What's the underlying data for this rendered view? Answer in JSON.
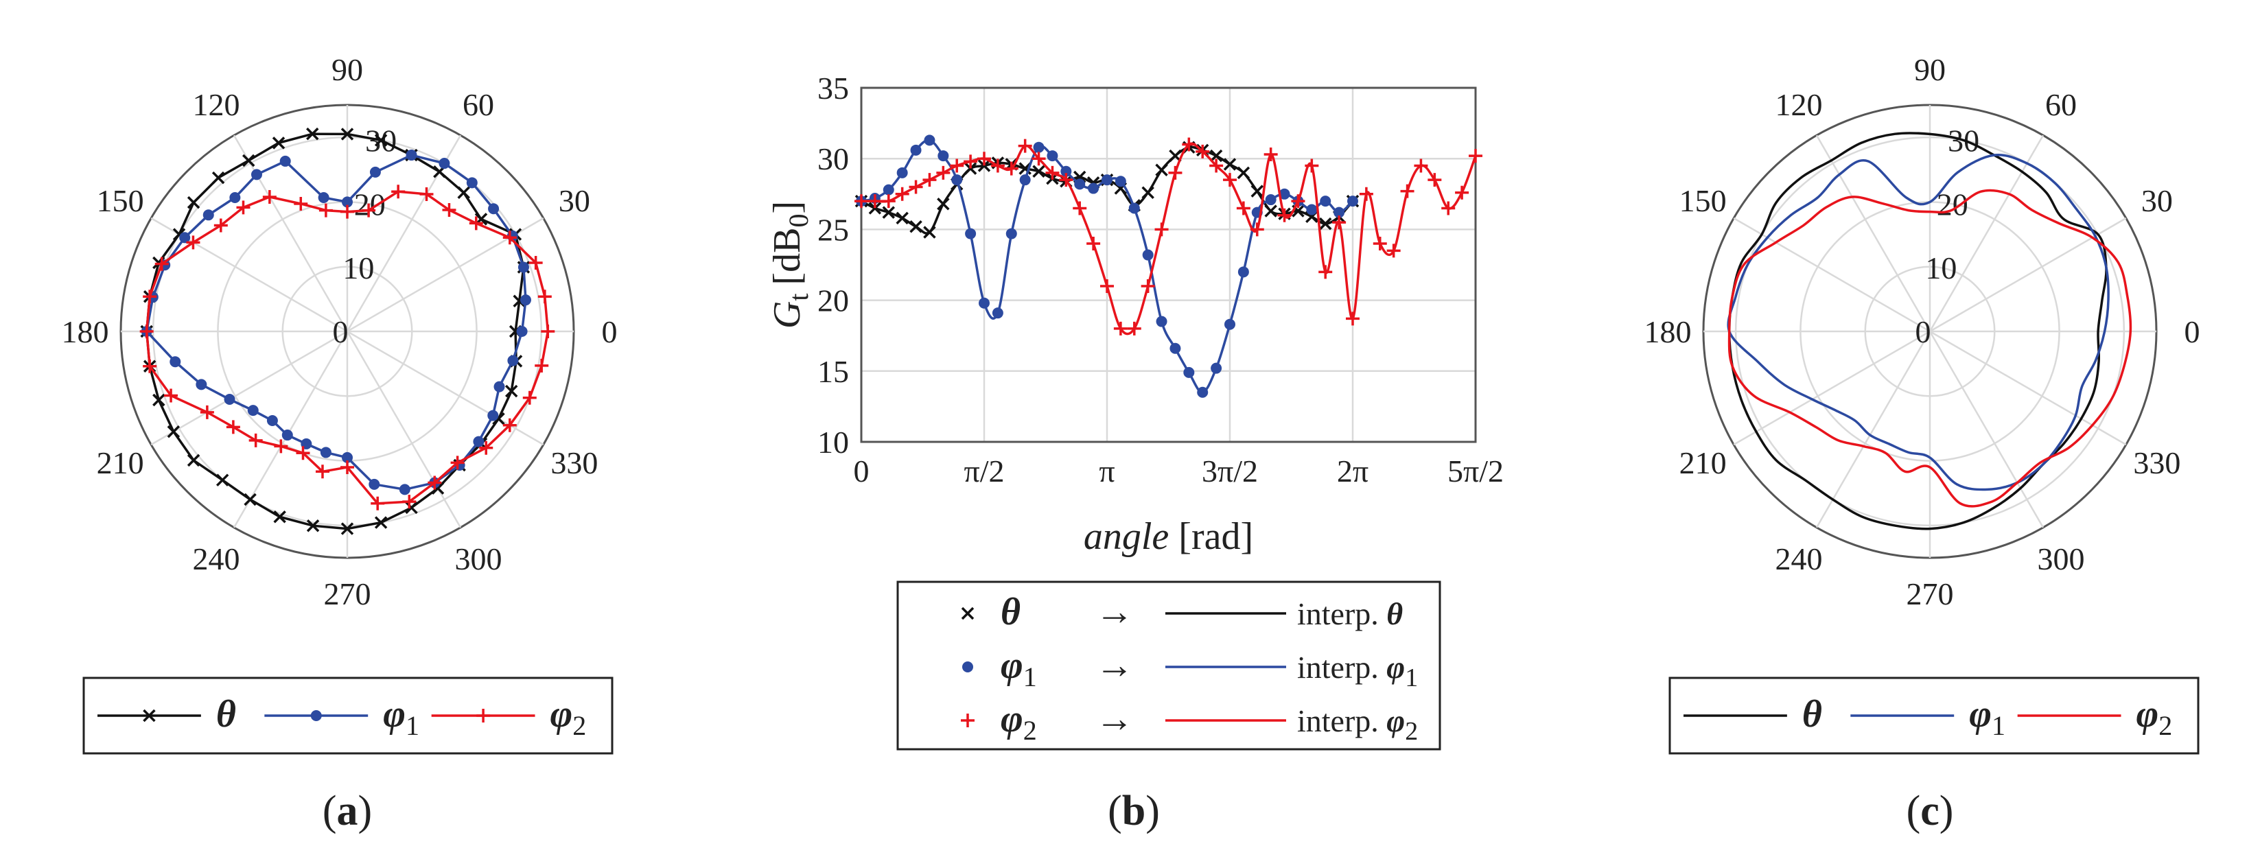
{
  "figure": {
    "panels": [
      "a",
      "b",
      "c"
    ],
    "subfigure_labels": [
      {
        "open": "(",
        "letter": "a",
        "close": ")"
      },
      {
        "open": "(",
        "letter": "b",
        "close": ")"
      },
      {
        "open": "(",
        "letter": "c",
        "close": ")"
      }
    ]
  },
  "colors": {
    "theta": "#111111",
    "phi1": "#2c4aa0",
    "phi2": "#e8141c",
    "grid": "#d9d9d9",
    "axis": "#555555"
  },
  "chart_data": [
    {
      "id": "a",
      "type": "polar",
      "subtitle": "(a)",
      "angle_unit": "deg",
      "angle_ticks": [
        "0",
        "30",
        "60",
        "90",
        "120",
        "150",
        "180",
        "210",
        "240",
        "270",
        "300",
        "330"
      ],
      "r_ticks": [
        "0",
        "10",
        "20",
        "30"
      ],
      "rlim": [
        0,
        35
      ],
      "legend": {
        "position": "bottom",
        "entries": [
          {
            "sym": "θ",
            "sub": ""
          },
          {
            "sym": "φ",
            "sub": "1"
          },
          {
            "sym": "φ",
            "sub": "2"
          }
        ]
      },
      "series": [
        {
          "name": "θ",
          "color_key": "theta",
          "marker": "x",
          "angles": [
            0,
            10,
            20,
            30,
            40,
            50,
            60,
            70,
            80,
            90,
            100,
            110,
            120,
            130,
            140,
            150,
            160,
            170,
            180,
            190,
            200,
            210,
            220,
            230,
            240,
            250,
            260,
            270,
            280,
            290,
            300,
            310,
            320,
            330,
            340,
            350
          ],
          "r": [
            26,
            27,
            29,
            30,
            27,
            28,
            28.5,
            29,
            30,
            30.5,
            31,
            31,
            30.5,
            31,
            31,
            30,
            31,
            31,
            31,
            31,
            31,
            31,
            31,
            30,
            30,
            30.5,
            30.5,
            30.5,
            30,
            29,
            28,
            27,
            27,
            27,
            27,
            26.5
          ]
        },
        {
          "name": "φ1",
          "color_key": "phi1",
          "marker": "o",
          "angles": [
            0,
            10,
            20,
            30,
            40,
            50,
            60,
            70,
            80,
            90,
            100,
            110,
            120,
            130,
            140,
            150,
            160,
            170,
            180,
            190,
            200,
            210,
            220,
            230,
            240,
            250,
            260,
            270,
            280,
            290,
            300,
            310,
            320,
            330,
            340,
            350
          ],
          "r": [
            27,
            28,
            29,
            29.5,
            29.5,
            30,
            30,
            29,
            25,
            20,
            21,
            28,
            28,
            27,
            28,
            29,
            30,
            30.5,
            31,
            27,
            24,
            21,
            19,
            18,
            18.5,
            18.5,
            19,
            19.5,
            24,
            26,
            27,
            27,
            26.5,
            26,
            25,
            26
          ]
        },
        {
          "name": "φ2",
          "color_key": "phi2",
          "marker": "+",
          "angles": [
            0,
            10,
            20,
            30,
            40,
            50,
            60,
            70,
            80,
            90,
            100,
            110,
            120,
            130,
            140,
            150,
            160,
            170,
            180,
            190,
            200,
            210,
            220,
            230,
            240,
            250,
            260,
            270,
            280,
            290,
            300,
            310,
            320,
            330,
            340,
            350
          ],
          "r": [
            31,
            31,
            31,
            29,
            26,
            24.5,
            24.5,
            23,
            19,
            18.5,
            19,
            21,
            24,
            25,
            25.5,
            27.5,
            30.5,
            31,
            31,
            31,
            29,
            25,
            23,
            22,
            20.5,
            20,
            22,
            21,
            27,
            28,
            27,
            26.5,
            28,
            29,
            30,
            30.5
          ]
        }
      ]
    },
    {
      "id": "b",
      "type": "line",
      "subtitle": "(b)",
      "ylabel": {
        "base": "G",
        "base_sub": "t",
        "unit": "[dB",
        "unit_sub": "0",
        "unit_close": "]"
      },
      "xlabel": {
        "italic": "angle",
        "rest": " [rad]"
      },
      "xlim": [
        0,
        7.854
      ],
      "ylim": [
        10,
        35
      ],
      "x_ticks": [
        0,
        1.5708,
        3.1416,
        4.7124,
        6.2832,
        7.854
      ],
      "x_tick_labels": [
        "0",
        "π/2",
        "π",
        "3π/2",
        "2π",
        "5π/2"
      ],
      "y_ticks": [
        10,
        15,
        20,
        25,
        30,
        35
      ],
      "y_tick_labels": [
        "10",
        "15",
        "20",
        "25",
        "30",
        "35"
      ],
      "grid": true,
      "legend": {
        "position": "bottom",
        "rows": [
          {
            "sym": "θ",
            "sub": "",
            "arrow": "→",
            "label": "interp. ",
            "lsym": "θ",
            "lsub": ""
          },
          {
            "sym": "φ",
            "sub": "1",
            "arrow": "→",
            "label": "interp. ",
            "lsym": "φ",
            "lsub": "1"
          },
          {
            "sym": "φ",
            "sub": "2",
            "arrow": "→",
            "label": "interp. ",
            "lsym": "φ",
            "lsub": "2"
          }
        ]
      },
      "series": [
        {
          "name": "θ",
          "color_key": "theta",
          "marker": "x",
          "x": [
            0,
            0.1745,
            0.3491,
            0.5236,
            0.6981,
            0.8727,
            1.0472,
            1.2217,
            1.3963,
            1.5708,
            1.7453,
            1.9199,
            2.0944,
            2.2689,
            2.4435,
            2.618,
            2.7925,
            2.9671,
            3.1416,
            3.3161,
            3.4907,
            3.6652,
            3.8397,
            4.0143,
            4.1888,
            4.3633,
            4.5379,
            4.7124,
            4.8869,
            5.0615,
            5.236,
            5.4105,
            5.5851,
            5.7596,
            5.9341,
            6.1087,
            6.2832
          ],
          "y": [
            27,
            26.5,
            26.2,
            25.8,
            25.2,
            24.8,
            26.8,
            28.2,
            29.3,
            29.5,
            29.7,
            29.6,
            29.3,
            29.1,
            28.6,
            28.4,
            28.7,
            28.3,
            28.5,
            27.9,
            26.7,
            27.6,
            29.2,
            30.2,
            30.8,
            30.6,
            30.2,
            29.6,
            29,
            27.7,
            26.3,
            26.1,
            26.3,
            25.9,
            25.4,
            25.9,
            27
          ]
        },
        {
          "name": "φ1",
          "color_key": "phi1",
          "marker": "o",
          "x": [
            0,
            0.1745,
            0.3491,
            0.5236,
            0.6981,
            0.8727,
            1.0472,
            1.2217,
            1.3963,
            1.5708,
            1.7453,
            1.9199,
            2.0944,
            2.2689,
            2.4435,
            2.618,
            2.7925,
            2.9671,
            3.1416,
            3.3161,
            3.4907,
            3.6652,
            3.8397,
            4.0143,
            4.1888,
            4.3633,
            4.5379,
            4.7124,
            4.8869,
            5.0615,
            5.236,
            5.4105,
            5.5851,
            5.7596,
            5.9341,
            6.1087,
            6.2832
          ],
          "y": [
            27,
            27.2,
            27.8,
            29,
            30.6,
            31.3,
            30.2,
            28.5,
            24.7,
            19.8,
            19.1,
            24.7,
            28.5,
            30.8,
            30.2,
            29.1,
            28.2,
            27.9,
            28.5,
            28.4,
            26.5,
            23.2,
            18.5,
            16.6,
            14.9,
            13.5,
            15.2,
            18.3,
            22,
            26.2,
            27.1,
            27.5,
            27,
            26.4,
            27,
            26.2,
            27
          ]
        },
        {
          "name": "φ2",
          "color_key": "phi2",
          "marker": "+",
          "x": [
            0,
            0.1745,
            0.3491,
            0.5236,
            0.6981,
            0.8727,
            1.0472,
            1.2217,
            1.3963,
            1.5708,
            1.7453,
            1.9199,
            2.0944,
            2.2689,
            2.4435,
            2.618,
            2.7925,
            2.9671,
            3.1416,
            3.3161,
            3.4907,
            3.6652,
            3.8397,
            4.0143,
            4.1888,
            4.3633,
            4.5379,
            4.7124,
            4.8869,
            5.0615,
            5.236,
            5.4105,
            5.5851,
            5.7596,
            5.9341,
            6.1087,
            6.2832,
            6.4577,
            6.6323,
            6.8068,
            6.9813,
            7.1558,
            7.3304,
            7.5049,
            7.6794,
            7.854
          ],
          "y": [
            27,
            27,
            27,
            27.5,
            28,
            28.5,
            29,
            29.5,
            29.8,
            30,
            29.5,
            29.3,
            30.9,
            30,
            29,
            28.5,
            26.5,
            24,
            21,
            18,
            18,
            21,
            25,
            29,
            31,
            30.5,
            29.5,
            28.5,
            26.5,
            25,
            30.3,
            26,
            27,
            29.5,
            22,
            25.5,
            18.7,
            27.5,
            24,
            23.5,
            27.7,
            29.5,
            28.5,
            26.5,
            27.6,
            30.2
          ]
        }
      ]
    },
    {
      "id": "c",
      "type": "polar",
      "subtitle": "(c)",
      "angle_unit": "deg",
      "angle_ticks": [
        "0",
        "30",
        "60",
        "90",
        "120",
        "150",
        "180",
        "210",
        "240",
        "270",
        "300",
        "330"
      ],
      "r_ticks": [
        "0",
        "10",
        "20",
        "30"
      ],
      "rlim": [
        0,
        35
      ],
      "legend": {
        "position": "bottom",
        "entries": [
          {
            "sym": "θ",
            "sub": ""
          },
          {
            "sym": "φ",
            "sub": "1"
          },
          {
            "sym": "φ",
            "sub": "2"
          }
        ]
      },
      "series": [
        {
          "name": "θ",
          "color_key": "theta",
          "marker": "none",
          "angles": [
            0,
            10,
            20,
            30,
            40,
            50,
            60,
            70,
            80,
            90,
            100,
            110,
            120,
            130,
            140,
            150,
            160,
            170,
            180,
            190,
            200,
            210,
            220,
            230,
            240,
            250,
            260,
            270,
            280,
            290,
            300,
            310,
            320,
            330,
            340,
            350
          ],
          "r": [
            26,
            27,
            29,
            30,
            27,
            28,
            28.5,
            29,
            30,
            30.5,
            31,
            31,
            30.5,
            31,
            31,
            30,
            31,
            31,
            31,
            31,
            31,
            31,
            31,
            30,
            30,
            30.5,
            30.5,
            30.5,
            30,
            29,
            28,
            27,
            27,
            27,
            27,
            26.5
          ]
        },
        {
          "name": "φ1",
          "color_key": "phi1",
          "marker": "none",
          "angles": [
            0,
            10,
            20,
            30,
            40,
            50,
            60,
            70,
            80,
            90,
            100,
            110,
            120,
            130,
            140,
            150,
            160,
            170,
            180,
            190,
            200,
            210,
            220,
            230,
            240,
            250,
            260,
            270,
            280,
            290,
            300,
            310,
            320,
            330,
            340,
            350
          ],
          "r": [
            27,
            28,
            29,
            29.5,
            29.5,
            30,
            30,
            29,
            25,
            20,
            21,
            28,
            28,
            27,
            28,
            29,
            30,
            30.5,
            31,
            27,
            24,
            21,
            19,
            18,
            18.5,
            18.5,
            19,
            19.5,
            24,
            26,
            27,
            27,
            26.5,
            26,
            25,
            26
          ]
        },
        {
          "name": "φ2",
          "color_key": "phi2",
          "marker": "none",
          "angles": [
            0,
            10,
            20,
            30,
            40,
            50,
            60,
            70,
            80,
            90,
            100,
            110,
            120,
            130,
            140,
            150,
            160,
            170,
            180,
            190,
            200,
            210,
            220,
            230,
            240,
            250,
            260,
            270,
            280,
            290,
            300,
            310,
            320,
            330,
            340,
            350
          ],
          "r": [
            31,
            31,
            31,
            29,
            26,
            24.5,
            24.5,
            23,
            19,
            18.5,
            19,
            21,
            24,
            25,
            25.5,
            27.5,
            30.5,
            31,
            31,
            31,
            29,
            25,
            23,
            22,
            20.5,
            20,
            22,
            21,
            27,
            28,
            27,
            26.5,
            28,
            29,
            30,
            30.5
          ]
        }
      ]
    }
  ]
}
